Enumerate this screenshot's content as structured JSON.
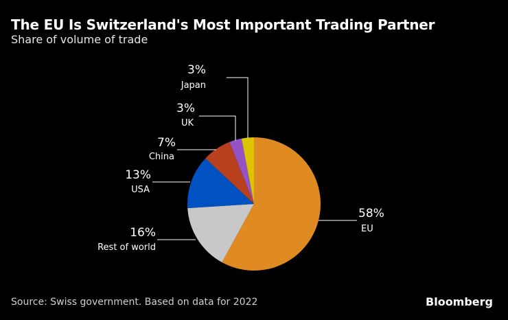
{
  "title": "The EU Is Switzerland's Most Important Trading Partner",
  "subtitle": "Share of volume of trade",
  "source": "Source: Swiss government. Based on data for 2022",
  "logo": "Bloomberg",
  "chart_data": {
    "type": "pie",
    "start": "top",
    "direction": "clockwise",
    "slices": [
      {
        "name": "EU",
        "value": 58,
        "label": "58%",
        "color": "#e08a22"
      },
      {
        "name": "Rest of world",
        "value": 16,
        "label": "16%",
        "color": "#c8c8c8"
      },
      {
        "name": "USA",
        "value": 13,
        "label": "13%",
        "color": "#0052c2"
      },
      {
        "name": "China",
        "value": 7,
        "label": "7%",
        "color": "#b8401c"
      },
      {
        "name": "UK",
        "value": 3,
        "label": "3%",
        "color": "#9552c4"
      },
      {
        "name": "Japan",
        "value": 3,
        "label": "3%",
        "color": "#dcc400"
      }
    ]
  }
}
